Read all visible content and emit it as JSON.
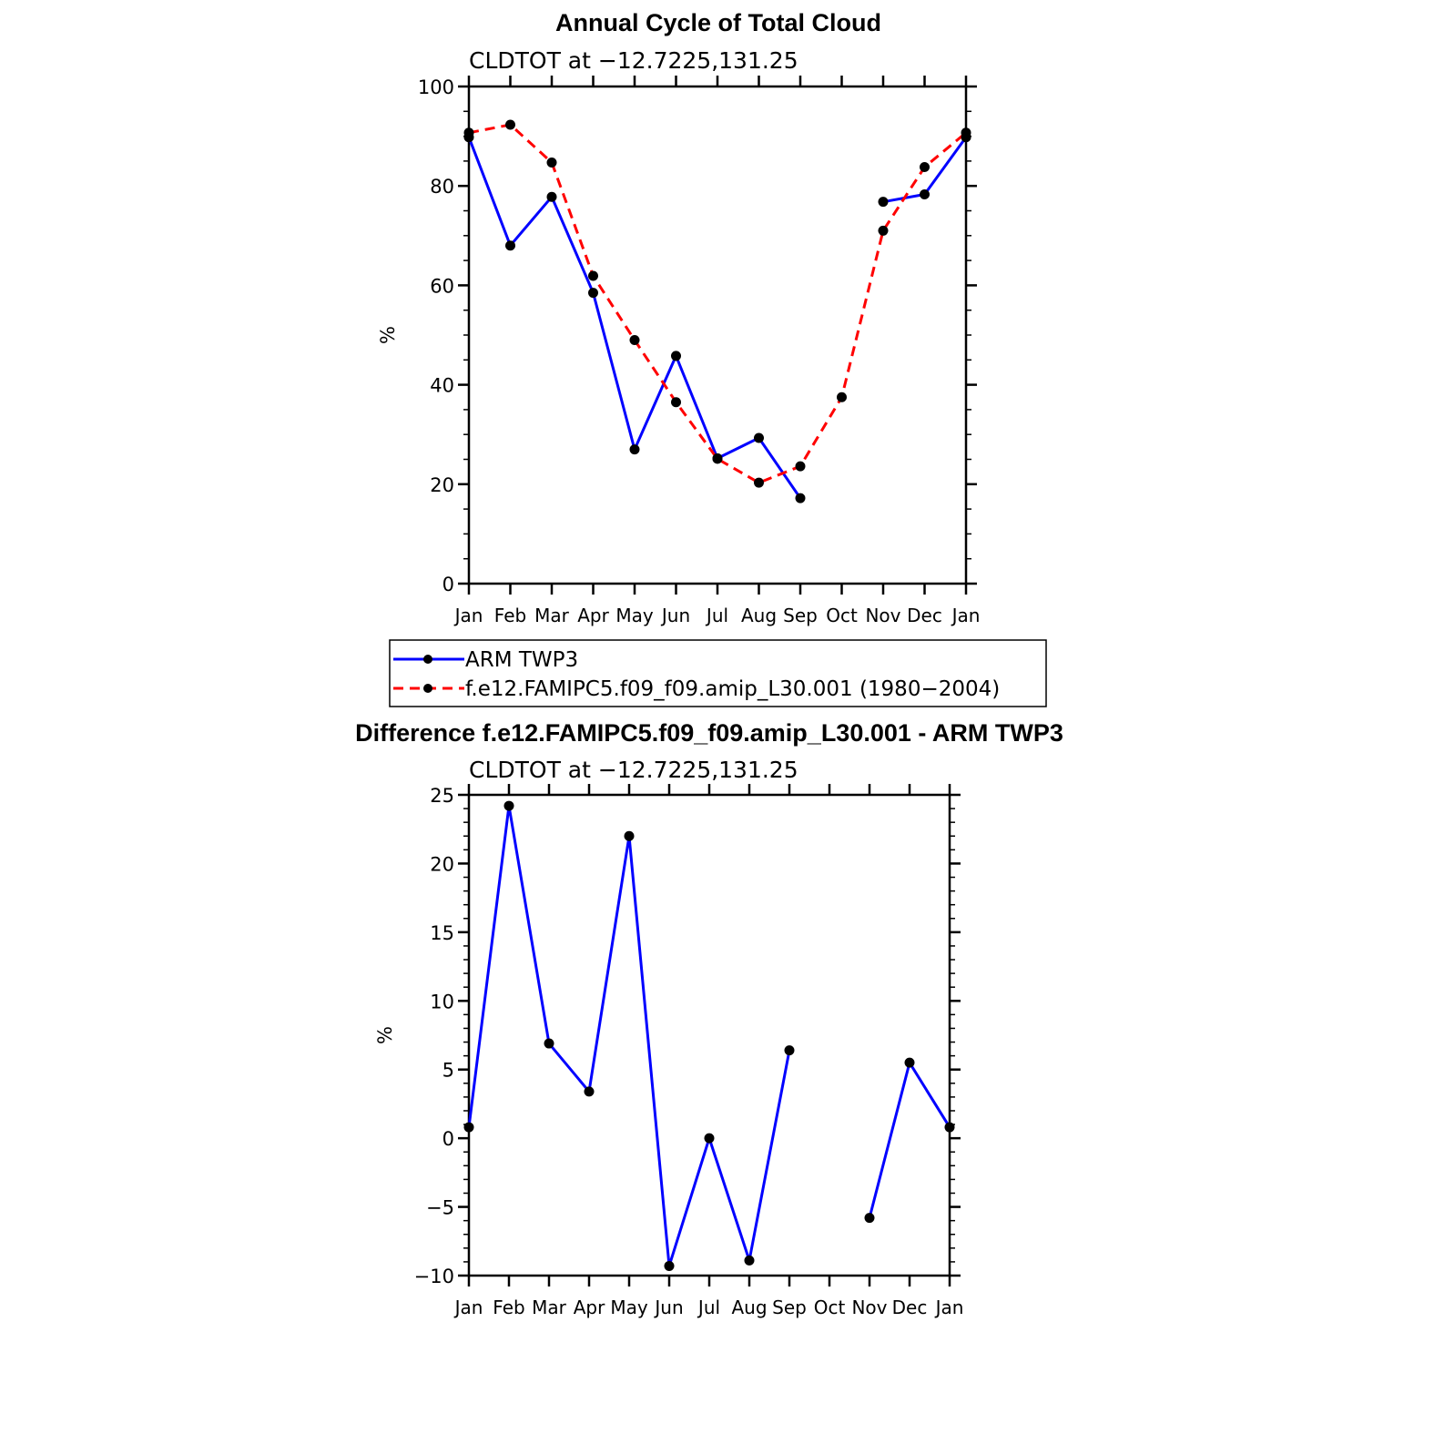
{
  "chart_data": [
    {
      "type": "line",
      "title": "Annual Cycle of Total Cloud",
      "subtitle": "CLDTOT at −12.7225,131.25",
      "ylabel": "%",
      "xlabel": "",
      "ylim": [
        0,
        100
      ],
      "y_ticks": [
        "0",
        "20",
        "40",
        "60",
        "80",
        "100"
      ],
      "categories": [
        "Jan",
        "Feb",
        "Mar",
        "Apr",
        "May",
        "Jun",
        "Jul",
        "Aug",
        "Sep",
        "Oct",
        "Nov",
        "Dec",
        "Jan"
      ],
      "series": [
        {
          "name": "ARM TWP3",
          "color": "#0000ff",
          "dash": "solid",
          "values": [
            89.8,
            68,
            77.8,
            58.5,
            27,
            45.8,
            25.2,
            29.3,
            17.2,
            null,
            76.8,
            78.3,
            89.8
          ]
        },
        {
          "name": "f.e12.FAMIPC5.f09_f09.amip_L30.001 (1980−2004)",
          "color": "#ff0000",
          "dash": "dashed",
          "values": [
            90.7,
            92.3,
            84.7,
            61.9,
            49,
            36.5,
            25.1,
            20.3,
            23.6,
            37.5,
            71,
            83.8,
            90.7
          ]
        }
      ],
      "legend_placement": "below"
    },
    {
      "type": "line",
      "title": "Difference f.e12.FAMIPC5.f09_f09.amip_L30.001 - ARM TWP3",
      "subtitle": "CLDTOT at −12.7225,131.25",
      "ylabel": "%",
      "xlabel": "",
      "ylim": [
        -10,
        25
      ],
      "y_ticks": [
        "−10",
        "−5",
        "0",
        "5",
        "10",
        "15",
        "20",
        "25"
      ],
      "categories": [
        "Jan",
        "Feb",
        "Mar",
        "Apr",
        "May",
        "Jun",
        "Jul",
        "Aug",
        "Sep",
        "Oct",
        "Nov",
        "Dec",
        "Jan"
      ],
      "series": [
        {
          "color": "#0000ff",
          "dash": "solid",
          "values": [
            0.8,
            24.2,
            6.9,
            3.4,
            22,
            -9.3,
            0,
            -8.9,
            6.4,
            null,
            -5.8,
            5.5,
            0.8
          ]
        }
      ]
    }
  ]
}
